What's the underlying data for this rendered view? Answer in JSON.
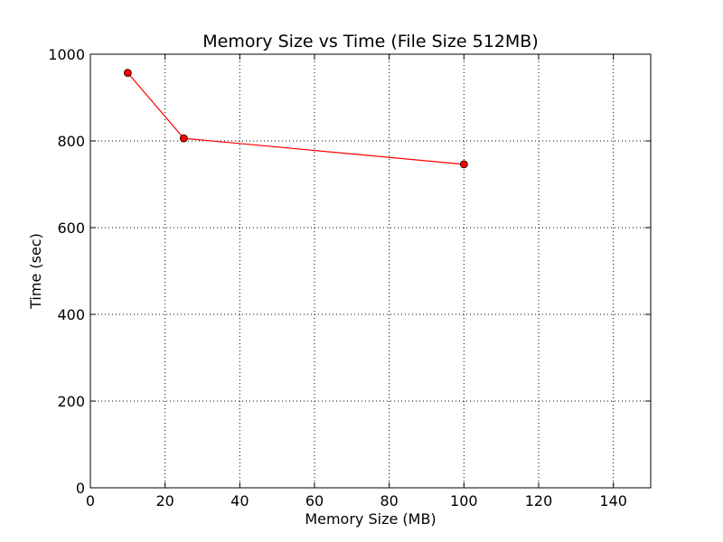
{
  "chart_data": {
    "type": "line",
    "title": "Memory Size vs Time (File Size 512MB)",
    "xlabel": "Memory Size (MB)",
    "ylabel": "Time (sec)",
    "xlim": [
      0,
      150
    ],
    "ylim": [
      0,
      1000
    ],
    "xticks": [
      0,
      20,
      40,
      60,
      80,
      100,
      120,
      140
    ],
    "yticks": [
      0,
      200,
      400,
      600,
      800,
      1000
    ],
    "grid": true,
    "legend": "none",
    "series": [
      {
        "color": "#ff0000",
        "marker": "circle",
        "x": [
          10,
          25,
          100
        ],
        "y": [
          957,
          806,
          746
        ]
      }
    ]
  }
}
